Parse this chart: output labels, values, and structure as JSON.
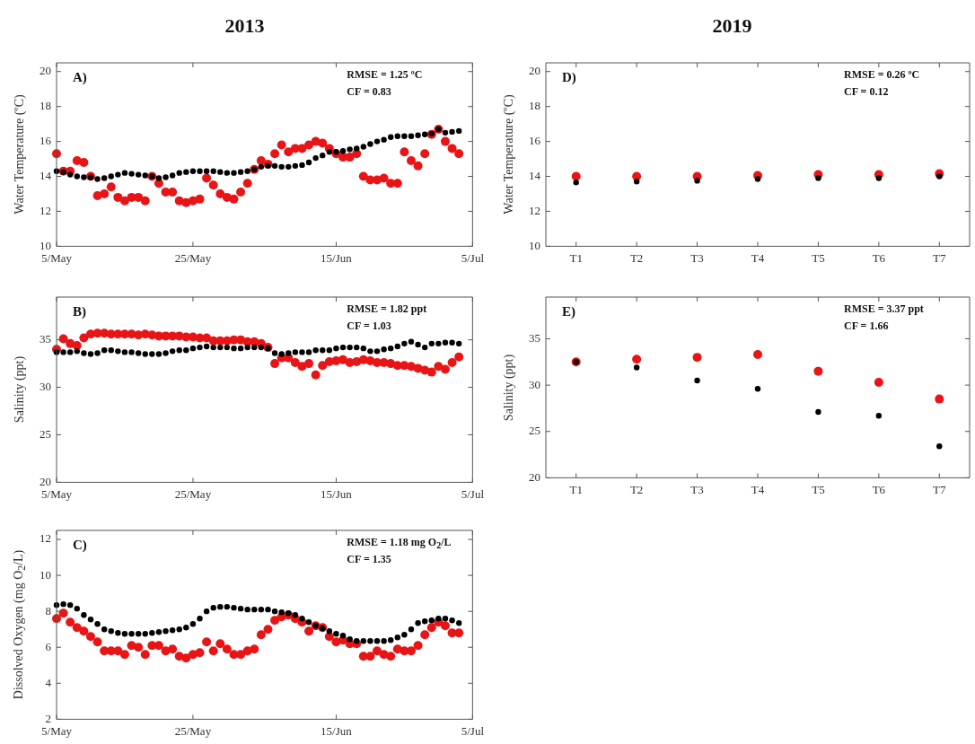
{
  "chart_data": [
    {
      "type": "scatter",
      "title": "2013",
      "ylabel": "Water Temperature (ºC)",
      "annotations": [
        "A)",
        "RMSE = 1.25 ºC",
        "CF = 0.83"
      ],
      "marker": "circle",
      "x": [
        "--05-05",
        "--05-06",
        "--05-07",
        "--05-08",
        "--05-09",
        "--05-10",
        "--05-11",
        "--05-12",
        "--05-13",
        "--05-14",
        "--05-15",
        "--05-16",
        "--05-17",
        "--05-18",
        "--05-19",
        "--05-20",
        "--05-21",
        "--05-22",
        "--05-23",
        "--05-24",
        "--05-25",
        "--05-26",
        "--05-27",
        "--05-28",
        "--05-29",
        "--05-30",
        "--05-31",
        "--06-01",
        "--06-02",
        "--06-03",
        "--06-04",
        "--06-05",
        "--06-06",
        "--06-07",
        "--06-08",
        "--06-09",
        "--06-10",
        "--06-11",
        "--06-12",
        "--06-13",
        "--06-14",
        "--06-15",
        "--06-16",
        "--06-17",
        "--06-18",
        "--06-19",
        "--06-20",
        "--06-21",
        "--06-22",
        "--06-23",
        "--06-24",
        "--06-25",
        "--06-26",
        "--06-27",
        "--06-28",
        "--06-29",
        "--06-30",
        "--07-01",
        "--07-02",
        "--07-03"
      ],
      "xlim": [
        "--05-05",
        "--07-05"
      ],
      "xticks": [
        {
          "value": "--05-05",
          "label": "5/May"
        },
        {
          "value": "--05-25",
          "label": "25/May"
        },
        {
          "value": "--06-15",
          "label": "15/Jun"
        },
        {
          "value": "--07-05",
          "label": "5/Jul"
        }
      ],
      "ylim": [
        10,
        20.5
      ],
      "yticks": [
        10,
        12,
        14,
        16,
        18,
        20
      ],
      "series": [
        {
          "color": "#e81416",
          "values": [
            15.3,
            14.3,
            14.3,
            14.9,
            14.8,
            14.0,
            12.9,
            13.0,
            13.4,
            12.8,
            12.6,
            12.8,
            12.8,
            12.6,
            14.0,
            13.6,
            13.1,
            13.1,
            12.6,
            12.5,
            12.6,
            12.7,
            13.9,
            13.5,
            13.0,
            12.8,
            12.7,
            13.1,
            13.6,
            14.4,
            14.9,
            14.7,
            15.3,
            15.8,
            15.4,
            15.6,
            15.6,
            15.8,
            16.0,
            15.9,
            15.6,
            15.3,
            15.1,
            15.1,
            15.3,
            14.0,
            13.8,
            13.8,
            13.9,
            13.6,
            13.6,
            15.4,
            14.9,
            14.6,
            15.3,
            16.4,
            16.7,
            16.0,
            15.6,
            15.3
          ]
        },
        {
          "color": "#000000",
          "values": [
            14.3,
            14.25,
            14.1,
            14.0,
            13.95,
            13.95,
            13.85,
            13.9,
            14.0,
            14.1,
            14.2,
            14.15,
            14.1,
            14.05,
            14.0,
            13.9,
            13.95,
            14.05,
            14.2,
            14.25,
            14.3,
            14.3,
            14.3,
            14.3,
            14.25,
            14.2,
            14.2,
            14.25,
            14.3,
            14.4,
            14.55,
            14.6,
            14.6,
            14.55,
            14.55,
            14.6,
            14.65,
            14.8,
            15.05,
            15.2,
            15.4,
            15.4,
            15.45,
            15.55,
            15.6,
            15.7,
            15.85,
            16.0,
            16.1,
            16.25,
            16.3,
            16.3,
            16.3,
            16.35,
            16.4,
            16.45,
            16.7,
            16.5,
            16.55,
            16.6
          ]
        }
      ]
    },
    {
      "type": "scatter",
      "ylabel": "Salinity (ppt)",
      "annotations": [
        "B)",
        "RMSE = 1.82 ppt",
        "CF = 1.03"
      ],
      "marker": "circle",
      "x": [
        "--05-05",
        "--05-06",
        "--05-07",
        "--05-08",
        "--05-09",
        "--05-10",
        "--05-11",
        "--05-12",
        "--05-13",
        "--05-14",
        "--05-15",
        "--05-16",
        "--05-17",
        "--05-18",
        "--05-19",
        "--05-20",
        "--05-21",
        "--05-22",
        "--05-23",
        "--05-24",
        "--05-25",
        "--05-26",
        "--05-27",
        "--05-28",
        "--05-29",
        "--05-30",
        "--05-31",
        "--06-01",
        "--06-02",
        "--06-03",
        "--06-04",
        "--06-05",
        "--06-06",
        "--06-07",
        "--06-08",
        "--06-09",
        "--06-10",
        "--06-11",
        "--06-12",
        "--06-13",
        "--06-14",
        "--06-15",
        "--06-16",
        "--06-17",
        "--06-18",
        "--06-19",
        "--06-20",
        "--06-21",
        "--06-22",
        "--06-23",
        "--06-24",
        "--06-25",
        "--06-26",
        "--06-27",
        "--06-28",
        "--06-29",
        "--06-30",
        "--07-01",
        "--07-02",
        "--07-03"
      ],
      "xlim": [
        "--05-05",
        "--07-05"
      ],
      "xticks": [
        {
          "value": "--05-05",
          "label": "5/May"
        },
        {
          "value": "--05-25",
          "label": "25/May"
        },
        {
          "value": "--06-15",
          "label": "15/Jun"
        },
        {
          "value": "--07-05",
          "label": "5/Jul"
        }
      ],
      "ylim": [
        20,
        39.5
      ],
      "yticks": [
        20,
        25,
        30,
        35
      ],
      "series": [
        {
          "color": "#e81416",
          "values": [
            34.0,
            35.1,
            34.6,
            34.4,
            35.2,
            35.6,
            35.7,
            35.7,
            35.6,
            35.6,
            35.6,
            35.6,
            35.5,
            35.6,
            35.5,
            35.4,
            35.4,
            35.4,
            35.4,
            35.3,
            35.3,
            35.2,
            35.2,
            34.9,
            34.9,
            34.9,
            35.0,
            35.0,
            34.8,
            34.8,
            34.6,
            34.2,
            32.5,
            33.1,
            33.1,
            32.6,
            32.2,
            32.5,
            31.3,
            32.3,
            32.7,
            32.8,
            32.9,
            32.6,
            32.7,
            32.9,
            32.8,
            32.6,
            32.6,
            32.5,
            32.3,
            32.3,
            32.2,
            32.0,
            31.8,
            31.6,
            32.2,
            31.9,
            32.6,
            33.2
          ]
        },
        {
          "color": "#000000",
          "values": [
            33.7,
            33.7,
            33.7,
            33.8,
            33.6,
            33.5,
            33.6,
            33.9,
            33.9,
            33.8,
            33.7,
            33.7,
            33.6,
            33.5,
            33.5,
            33.5,
            33.6,
            33.8,
            33.9,
            33.9,
            34.1,
            34.2,
            34.3,
            34.2,
            34.2,
            34.2,
            34.1,
            34.1,
            34.2,
            34.2,
            34.2,
            34.1,
            33.6,
            33.5,
            33.6,
            33.7,
            33.7,
            33.7,
            33.9,
            33.9,
            33.9,
            34.1,
            34.2,
            34.2,
            34.2,
            34.1,
            33.8,
            33.8,
            34.0,
            34.1,
            34.3,
            34.6,
            34.8,
            34.5,
            34.2,
            34.6,
            34.6,
            34.7,
            34.7,
            34.6
          ]
        }
      ]
    },
    {
      "type": "scatter",
      "ylabel": "Dissolved Oxygen (mg O$_{2}$/L)",
      "annotations": [
        "C)",
        "RMSE = 1.18 mg O$_{2}$/L",
        "CF = 1.35"
      ],
      "marker": "circle",
      "x": [
        "--05-05",
        "--05-06",
        "--05-07",
        "--05-08",
        "--05-09",
        "--05-10",
        "--05-11",
        "--05-12",
        "--05-13",
        "--05-14",
        "--05-15",
        "--05-16",
        "--05-17",
        "--05-18",
        "--05-19",
        "--05-20",
        "--05-21",
        "--05-22",
        "--05-23",
        "--05-24",
        "--05-25",
        "--05-26",
        "--05-27",
        "--05-28",
        "--05-29",
        "--05-30",
        "--05-31",
        "--06-01",
        "--06-02",
        "--06-03",
        "--06-04",
        "--06-05",
        "--06-06",
        "--06-07",
        "--06-08",
        "--06-09",
        "--06-10",
        "--06-11",
        "--06-12",
        "--06-13",
        "--06-14",
        "--06-15",
        "--06-16",
        "--06-17",
        "--06-18",
        "--06-19",
        "--06-20",
        "--06-21",
        "--06-22",
        "--06-23",
        "--06-24",
        "--06-25",
        "--06-26",
        "--06-27",
        "--06-28",
        "--06-29",
        "--06-30",
        "--07-01",
        "--07-02",
        "--07-03"
      ],
      "xlim": [
        "--05-05",
        "--07-05"
      ],
      "xticks": [
        {
          "value": "--05-05",
          "label": "5/May"
        },
        {
          "value": "--05-25",
          "label": "25/May"
        },
        {
          "value": "--06-15",
          "label": "15/Jun"
        },
        {
          "value": "--07-05",
          "label": "5/Jul"
        }
      ],
      "ylim": [
        2,
        12.5
      ],
      "yticks": [
        2,
        4,
        6,
        8,
        10,
        12
      ],
      "series": [
        {
          "color": "#e81416",
          "values": [
            7.6,
            7.9,
            7.4,
            7.1,
            6.9,
            6.6,
            6.3,
            5.8,
            5.8,
            5.8,
            5.6,
            6.1,
            6.0,
            5.6,
            6.1,
            6.1,
            5.8,
            5.9,
            5.5,
            5.4,
            5.6,
            5.7,
            6.3,
            5.8,
            6.2,
            5.9,
            5.6,
            5.6,
            5.8,
            5.9,
            6.7,
            7.0,
            7.5,
            7.7,
            7.8,
            7.6,
            7.4,
            6.9,
            7.2,
            7.1,
            6.6,
            6.3,
            6.4,
            6.2,
            6.2,
            5.5,
            5.5,
            5.8,
            5.6,
            5.5,
            5.9,
            5.8,
            5.8,
            6.1,
            6.7,
            7.1,
            7.4,
            7.2,
            6.8,
            6.8
          ]
        },
        {
          "color": "#000000",
          "values": [
            8.35,
            8.4,
            8.35,
            8.15,
            7.8,
            7.55,
            7.3,
            7.0,
            6.9,
            6.8,
            6.75,
            6.75,
            6.75,
            6.75,
            6.8,
            6.85,
            6.9,
            6.95,
            7.0,
            7.1,
            7.3,
            7.6,
            8.0,
            8.2,
            8.25,
            8.25,
            8.2,
            8.15,
            8.1,
            8.1,
            8.1,
            8.1,
            8.0,
            7.95,
            7.9,
            7.8,
            7.6,
            7.4,
            7.2,
            7.05,
            6.9,
            6.75,
            6.65,
            6.45,
            6.35,
            6.35,
            6.35,
            6.35,
            6.35,
            6.4,
            6.55,
            6.7,
            7.0,
            7.35,
            7.45,
            7.5,
            7.6,
            7.6,
            7.5,
            7.35
          ]
        }
      ]
    },
    {
      "type": "scatter",
      "title": "2019",
      "ylabel": "Water Temperature (ºC)",
      "annotations": [
        "D)",
        "RMSE = 0.26 ºC",
        "CF = 0.12"
      ],
      "marker": "circle",
      "categories": [
        "T1",
        "T2",
        "T3",
        "T4",
        "T5",
        "T6",
        "T7"
      ],
      "ylim": [
        10,
        20.5
      ],
      "yticks": [
        10,
        12,
        14,
        16,
        18,
        20
      ],
      "series": [
        {
          "color": "#e81416",
          "values": [
            14.0,
            14.0,
            14.0,
            14.05,
            14.1,
            14.1,
            14.15
          ]
        },
        {
          "color": "#000000",
          "values": [
            13.65,
            13.7,
            13.75,
            13.85,
            13.9,
            13.9,
            14.0
          ]
        }
      ]
    },
    {
      "type": "scatter",
      "ylabel": "Salinity (ppt)",
      "annotations": [
        "E)",
        "RMSE = 3.37 ppt",
        "CF = 1.66"
      ],
      "marker": "circle",
      "categories": [
        "T1",
        "T2",
        "T3",
        "T4",
        "T5",
        "T6",
        "T7"
      ],
      "ylim": [
        20,
        39.5
      ],
      "yticks": [
        20,
        25,
        30,
        35
      ],
      "series": [
        {
          "color": "#e81416",
          "values": [
            32.5,
            32.8,
            33.0,
            33.3,
            31.5,
            30.3,
            28.5
          ]
        },
        {
          "color": "#000000",
          "values": [
            32.5,
            31.9,
            30.5,
            29.6,
            27.1,
            26.7,
            23.4
          ]
        }
      ]
    }
  ]
}
